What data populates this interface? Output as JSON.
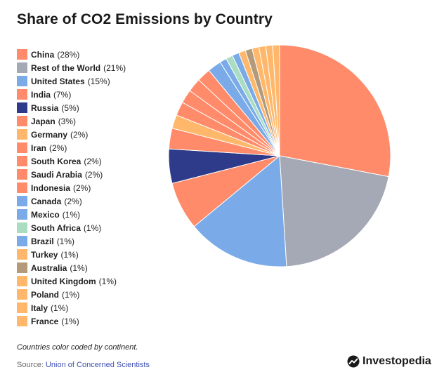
{
  "chart_data": {
    "type": "pie",
    "title": "Share of CO2 Emissions by Country",
    "slices": [
      {
        "label": "China",
        "value": 28,
        "pct_label": "(28%)",
        "color": "#ff8b6a"
      },
      {
        "label": "Rest of the World",
        "value": 21,
        "pct_label": "(21%)",
        "color": "#a5a8b5"
      },
      {
        "label": "United States",
        "value": 15,
        "pct_label": "(15%)",
        "color": "#7aabe8"
      },
      {
        "label": "India",
        "value": 7,
        "pct_label": "(7%)",
        "color": "#ff8b6a"
      },
      {
        "label": "Russia",
        "value": 5,
        "pct_label": "(5%)",
        "color": "#2e3a8a"
      },
      {
        "label": "Japan",
        "value": 3,
        "pct_label": "(3%)",
        "color": "#ff8b6a"
      },
      {
        "label": "Germany",
        "value": 2,
        "pct_label": "(2%)",
        "color": "#ffb86b"
      },
      {
        "label": "Iran",
        "value": 2,
        "pct_label": "(2%)",
        "color": "#ff8b6a"
      },
      {
        "label": "South Korea",
        "value": 2,
        "pct_label": "(2%)",
        "color": "#ff8b6a"
      },
      {
        "label": "Saudi Arabia",
        "value": 2,
        "pct_label": "(2%)",
        "color": "#ff8b6a"
      },
      {
        "label": "Indonesia",
        "value": 2,
        "pct_label": "(2%)",
        "color": "#ff8b6a"
      },
      {
        "label": "Canada",
        "value": 2,
        "pct_label": "(2%)",
        "color": "#7aabe8"
      },
      {
        "label": "Mexico",
        "value": 1,
        "pct_label": "(1%)",
        "color": "#7aabe8"
      },
      {
        "label": "South Africa",
        "value": 1,
        "pct_label": "(1%)",
        "color": "#a9dcc0"
      },
      {
        "label": "Brazil",
        "value": 1,
        "pct_label": "(1%)",
        "color": "#7aabe8"
      },
      {
        "label": "Turkey",
        "value": 1,
        "pct_label": "(1%)",
        "color": "#ffb86b"
      },
      {
        "label": "Australia",
        "value": 1,
        "pct_label": "(1%)",
        "color": "#b29a7a"
      },
      {
        "label": "United Kingdom",
        "value": 1,
        "pct_label": "(1%)",
        "color": "#ffb86b"
      },
      {
        "label": "Poland",
        "value": 1,
        "pct_label": "(1%)",
        "color": "#ffb86b"
      },
      {
        "label": "Italy",
        "value": 1,
        "pct_label": "(1%)",
        "color": "#ffb86b"
      },
      {
        "label": "France",
        "value": 1,
        "pct_label": "(1%)",
        "color": "#ffb86b"
      }
    ],
    "legend_position": "left",
    "slice_border_color": "#ffffff"
  },
  "note": "Countries color coded by continent.",
  "source": {
    "prefix": "Source:",
    "name": "Union of Concerned Scientists"
  },
  "logo": {
    "text": "Investopedia",
    "icon": "investopedia-logo-icon",
    "color": "#1a1a1a"
  }
}
